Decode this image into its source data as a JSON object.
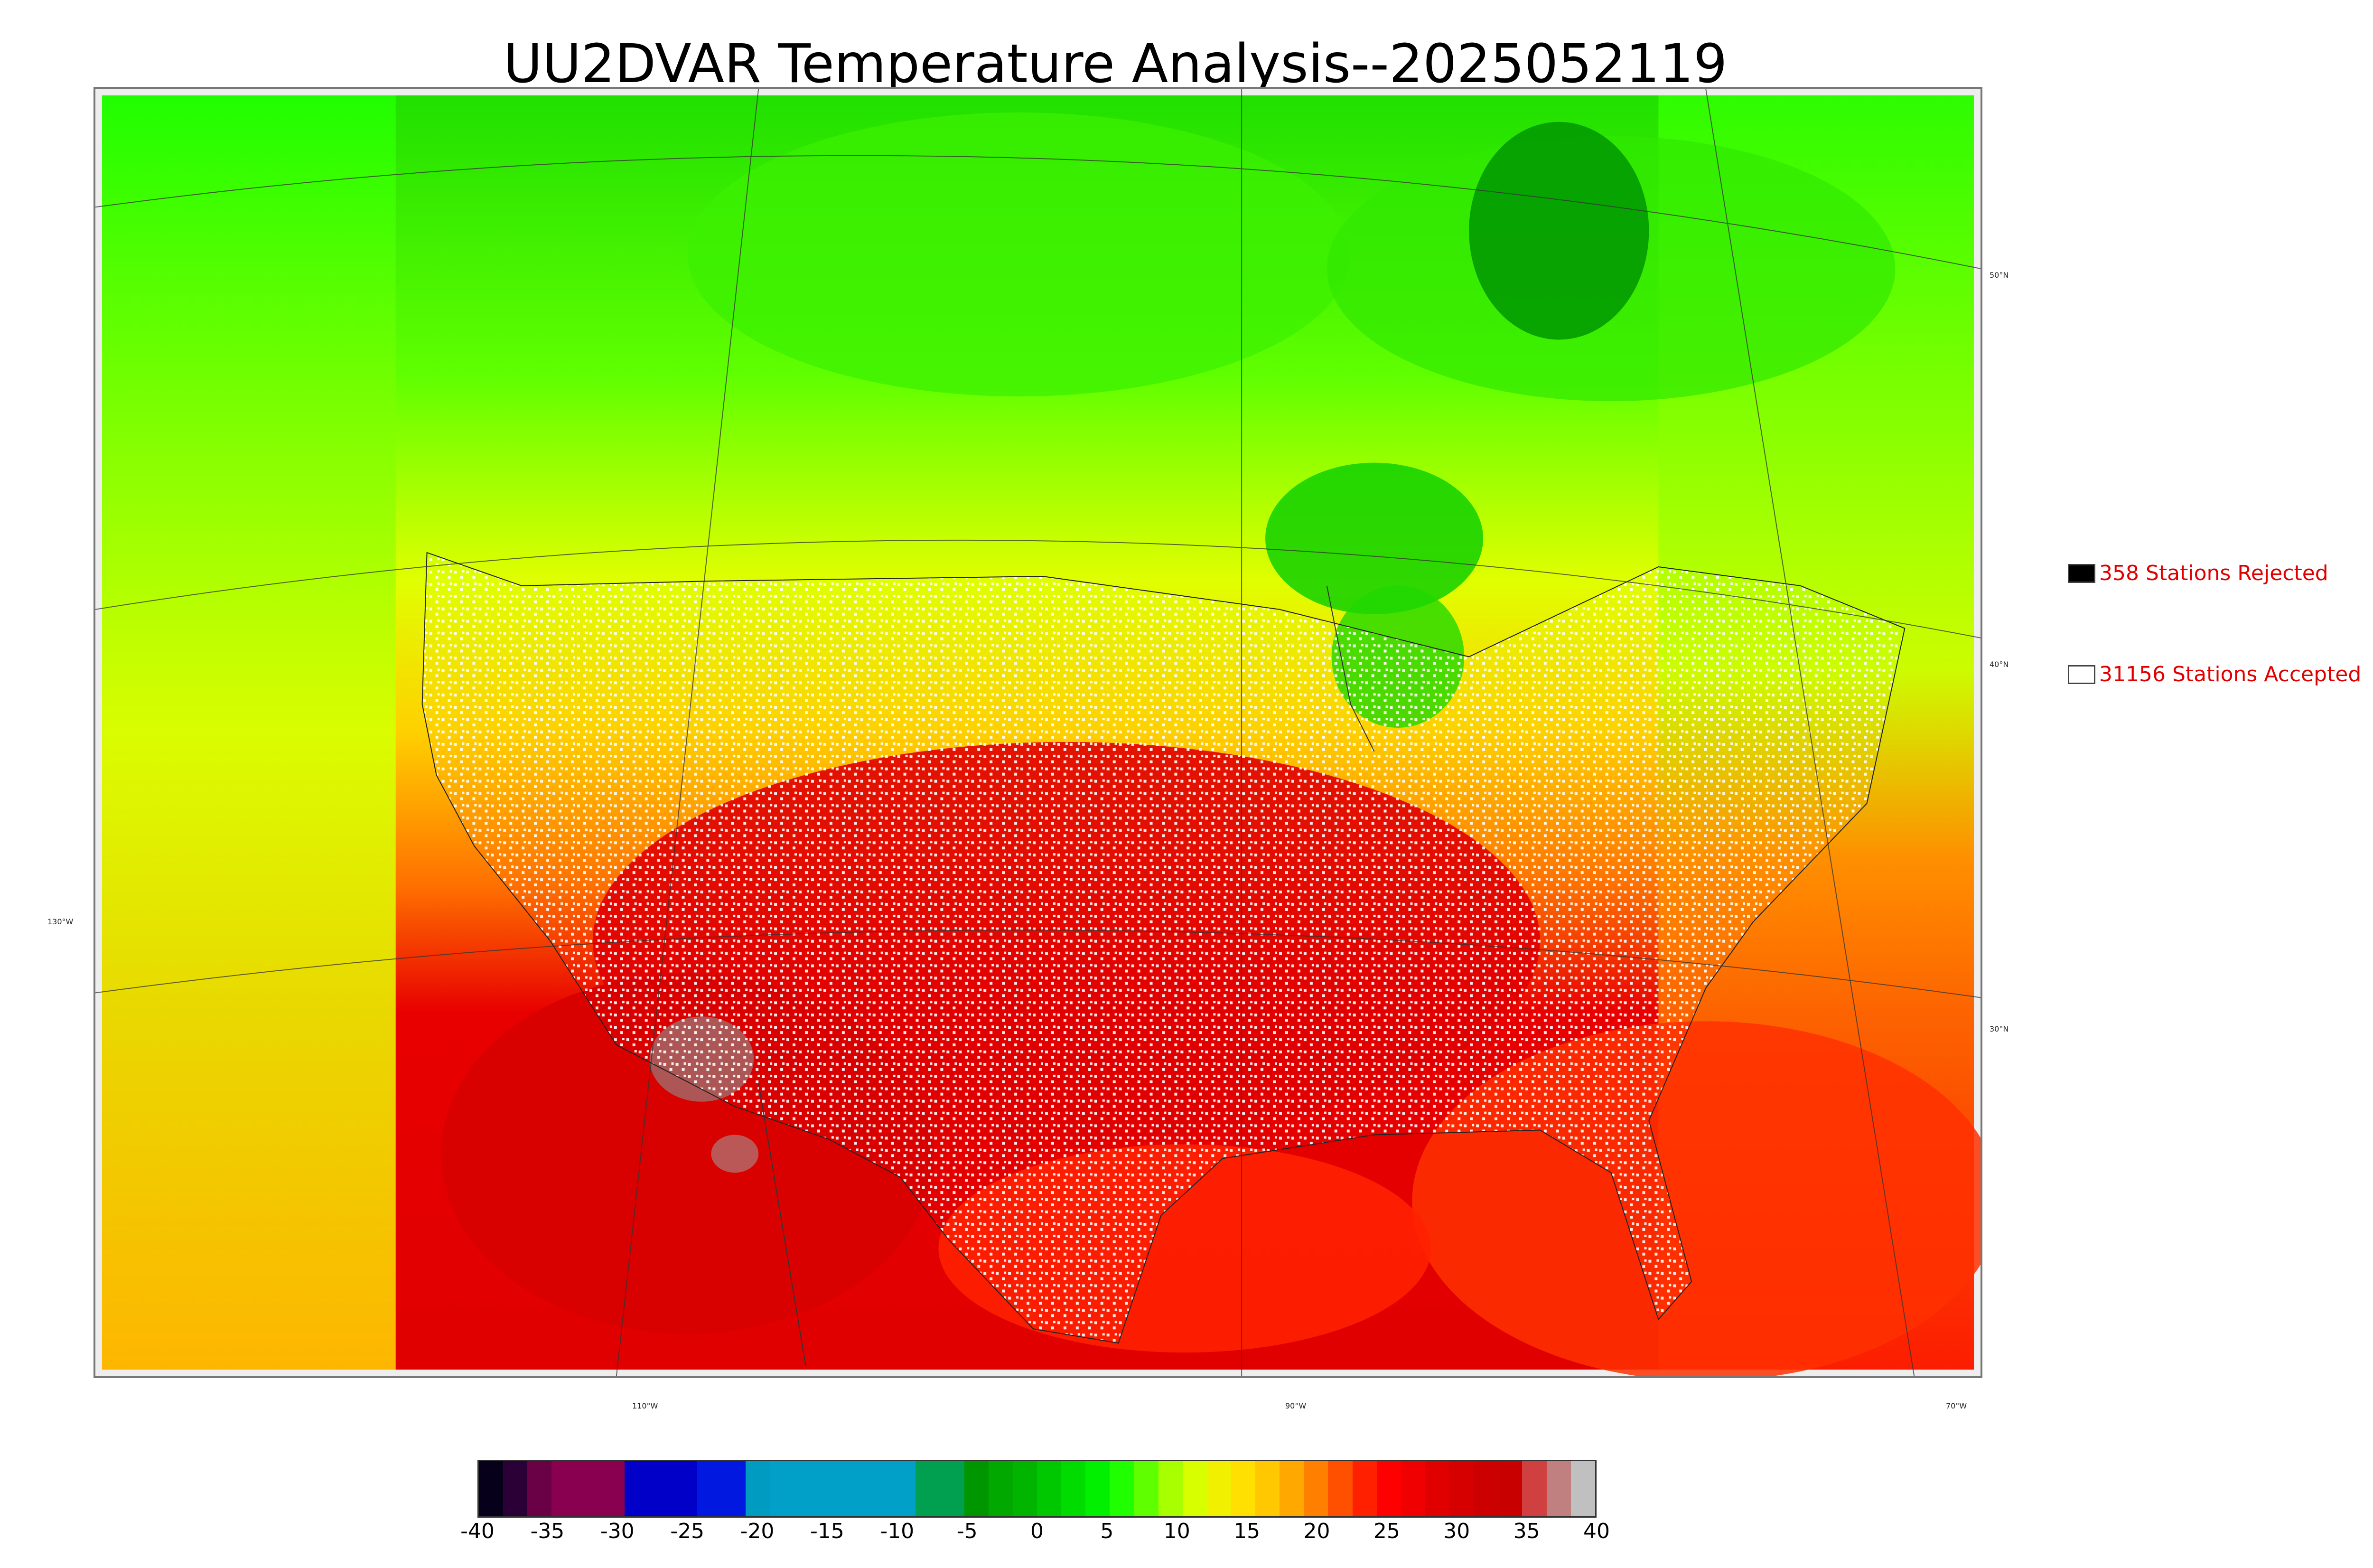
{
  "title": "UU2DVAR Temperature Analysis--2025052119",
  "map": {
    "latitude_labels": [
      "50°N",
      "40°N",
      "30°N"
    ],
    "longitude_labels": [
      "130°W",
      "110°W",
      "90°W",
      "70°W"
    ]
  },
  "legend": {
    "rejected": {
      "count": 358,
      "text": "358 Stations Rejected",
      "color": "#000000"
    },
    "accepted": {
      "count": 31156,
      "text": "31156 Stations Accepted",
      "color": "#ffffff"
    },
    "text_color": "#e00000"
  },
  "colorbar": {
    "min": -40,
    "max": 40,
    "tick_labels": [
      "-40",
      "-35",
      "-30",
      "-25",
      "-20",
      "-15",
      "-10",
      "-5",
      "0",
      "5",
      "10",
      "15",
      "20",
      "25",
      "30",
      "35",
      "40"
    ],
    "colors": [
      "#06001a",
      "#2a0036",
      "#6a0046",
      "#8a0050",
      "#8a0050",
      "#8a0050",
      "#0000c8",
      "#0000c8",
      "#0000c8",
      "#0018e0",
      "#0018e0",
      "#009bc0",
      "#00a0c8",
      "#00a0c8",
      "#00a0c8",
      "#00a0c8",
      "#00a0c8",
      "#00a0c8",
      "#00a050",
      "#00a050",
      "#009600",
      "#00a800",
      "#00b400",
      "#00c800",
      "#00dc00",
      "#00f000",
      "#20ff00",
      "#60ff00",
      "#a8ff00",
      "#d8ff00",
      "#f0f000",
      "#ffe000",
      "#ffc800",
      "#ffa800",
      "#ff8000",
      "#ff5000",
      "#ff2000",
      "#ff0000",
      "#f00000",
      "#e00000",
      "#d60000",
      "#cc0000",
      "#c80000",
      "#d04040",
      "#c08080",
      "#c0c0c0"
    ]
  }
}
